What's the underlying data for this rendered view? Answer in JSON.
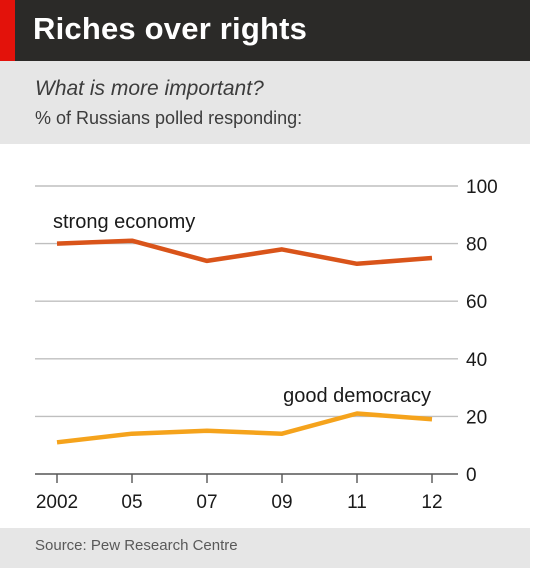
{
  "header": {
    "title": "Riches over rights",
    "subtitle": "What is more important?",
    "note": "% of Russians polled responding:"
  },
  "footer": {
    "source": "Source: Pew Research Centre"
  },
  "colors": {
    "title_bar": "#2b2a28",
    "accent_red": "#e3120b",
    "band": "#e6e6e6",
    "strong_economy": "#d9541a",
    "good_democracy": "#f5a31c",
    "grid": "#bfbfbf"
  },
  "chart_data": {
    "type": "line",
    "x": [
      2002,
      2005,
      2007,
      2009,
      2011,
      2012
    ],
    "x_tick_labels": [
      "2002",
      "05",
      "07",
      "09",
      "11",
      "12"
    ],
    "ylim": [
      0,
      100
    ],
    "y_ticks": [
      0,
      20,
      40,
      60,
      80,
      100
    ],
    "y_axis_side": "right",
    "grid": true,
    "series": [
      {
        "name": "strong economy",
        "values": [
          80,
          81,
          74,
          78,
          73,
          75
        ]
      },
      {
        "name": "good democracy",
        "values": [
          11,
          14,
          15,
          14,
          21,
          19
        ]
      }
    ]
  }
}
